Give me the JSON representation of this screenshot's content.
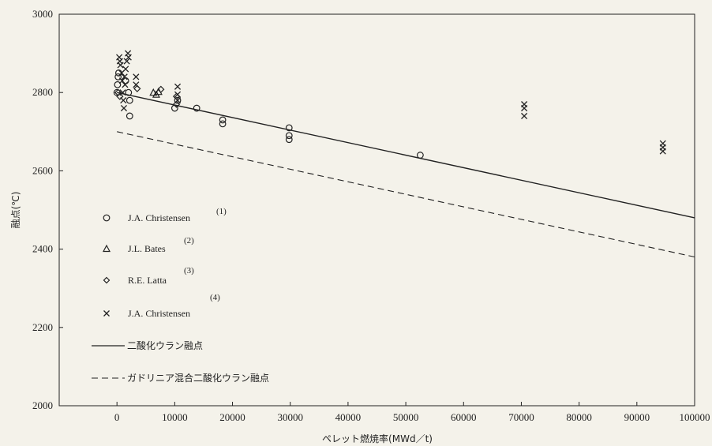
{
  "chart_data": {
    "type": "scatter",
    "xlabel": "ペレット燃焼率(MWd／t)",
    "ylabel": "融点(℃)",
    "xlim": [
      -10000,
      100000
    ],
    "ylim": [
      2000,
      3000
    ],
    "xticks": [
      0,
      10000,
      20000,
      30000,
      40000,
      50000,
      60000,
      70000,
      80000,
      90000,
      100000
    ],
    "yticks": [
      2000,
      2200,
      2400,
      2600,
      2800,
      3000
    ],
    "xtick_labels": [
      "0",
      "10000",
      "20000",
      "30000",
      "40000",
      "50000",
      "60000",
      "70000",
      "80000",
      "90000",
      "100000"
    ],
    "ytick_labels": [
      "2000",
      "2200",
      "2400",
      "2600",
      "2800",
      "3000"
    ],
    "grid": false,
    "legend_position": "left-middle",
    "series": [
      {
        "name": "J.A. Christensen",
        "ref": "(1)",
        "marker": "circle",
        "points": [
          [
            0,
            2800
          ],
          [
            100,
            2820
          ],
          [
            200,
            2840
          ],
          [
            300,
            2850
          ],
          [
            1500,
            2830
          ],
          [
            2000,
            2800
          ],
          [
            2200,
            2780
          ],
          [
            2200,
            2740
          ],
          [
            10000,
            2760
          ],
          [
            10500,
            2780
          ],
          [
            13800,
            2760
          ],
          [
            18300,
            2730
          ],
          [
            18300,
            2720
          ],
          [
            29800,
            2710
          ],
          [
            29800,
            2690
          ],
          [
            29800,
            2680
          ],
          [
            52500,
            2640
          ]
        ]
      },
      {
        "name": "J.L. Bates",
        "ref": "(2)",
        "marker": "triangle",
        "points": [
          [
            6300,
            2800
          ],
          [
            6800,
            2795
          ],
          [
            7200,
            2802
          ]
        ]
      },
      {
        "name": "R.E. Latta",
        "ref": "(3)",
        "marker": "diamond",
        "points": [
          [
            200,
            2800
          ],
          [
            500,
            2790
          ],
          [
            3500,
            2810
          ],
          [
            7600,
            2808
          ],
          [
            10300,
            2770
          ],
          [
            10300,
            2790
          ]
        ]
      },
      {
        "name": "J.A. Christensen",
        "ref": "(4)",
        "marker": "x",
        "points": [
          [
            400,
            2890
          ],
          [
            500,
            2880
          ],
          [
            600,
            2870
          ],
          [
            800,
            2850
          ],
          [
            900,
            2830
          ],
          [
            1000,
            2800
          ],
          [
            1100,
            2780
          ],
          [
            1200,
            2760
          ],
          [
            1300,
            2840
          ],
          [
            1500,
            2860
          ],
          [
            1700,
            2880
          ],
          [
            1900,
            2900
          ],
          [
            2000,
            2890
          ],
          [
            1400,
            2820
          ],
          [
            3300,
            2840
          ],
          [
            3300,
            2820
          ],
          [
            10500,
            2815
          ],
          [
            10500,
            2795
          ],
          [
            10500,
            2780
          ],
          [
            70500,
            2770
          ],
          [
            70500,
            2760
          ],
          [
            70500,
            2740
          ],
          [
            94500,
            2670
          ],
          [
            94500,
            2660
          ],
          [
            94500,
            2650
          ]
        ]
      }
    ],
    "lines": [
      {
        "name": "二酸化ウラン融点",
        "style": "solid",
        "points": [
          [
            0,
            2800
          ],
          [
            100000,
            2480
          ]
        ]
      },
      {
        "name": "ガドリニア混合二酸化ウラン融点",
        "style": "dashed",
        "points": [
          [
            0,
            2700
          ],
          [
            100000,
            2380
          ]
        ]
      }
    ]
  }
}
